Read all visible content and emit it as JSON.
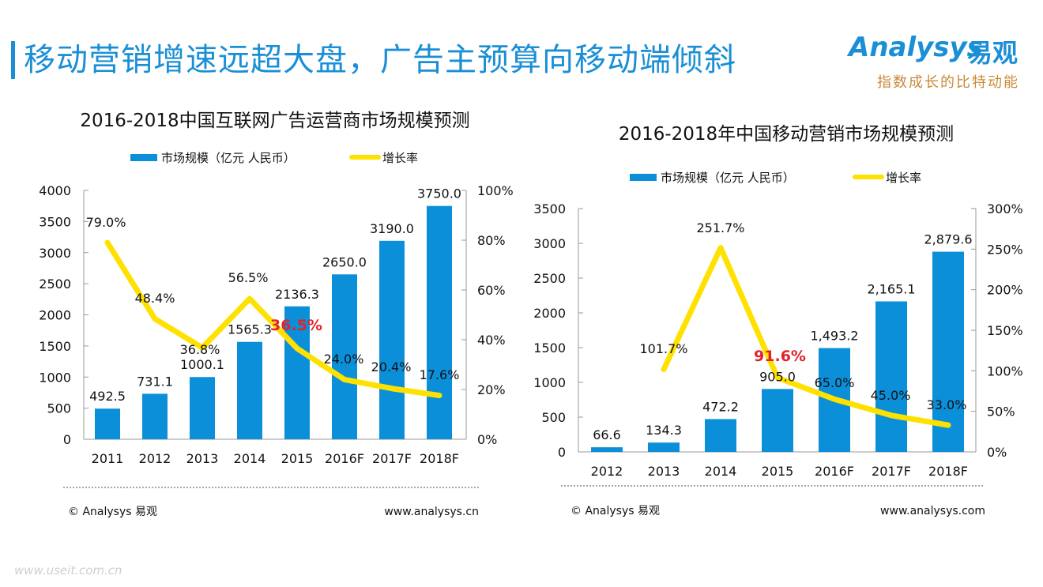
{
  "header": {
    "title": "移动营销增速远超大盘，广告主预算向移动端倾斜",
    "logo_en": "Analysys",
    "logo_cn": "易观",
    "slogan": "指数成长的比特动能"
  },
  "colors": {
    "bar": "#0b8fd9",
    "line": "#ffe100",
    "highlight": "#e0242a",
    "title_blue": "#1a8fd6"
  },
  "watermark": "www.useit.com.cn",
  "chart_data": [
    {
      "type": "bar",
      "title": "2016-2018中国互联网广告运营商市场规模预测",
      "legend": [
        "市场规模（亿元 人民币）",
        "增长率"
      ],
      "legend_position": "top",
      "categories": [
        "2011",
        "2012",
        "2013",
        "2014",
        "2015",
        "2016F",
        "2017F",
        "2018F"
      ],
      "series": [
        {
          "name": "市场规模（亿元 人民币）",
          "type": "bar",
          "axis": "left",
          "values": [
            492.5,
            731.1,
            1000.1,
            1565.3,
            2136.3,
            2650.0,
            3190.0,
            3750.0
          ],
          "labels": [
            "492.5",
            "731.1",
            "1000.1",
            "1565.3",
            "2136.3",
            "2650.0",
            "3190.0",
            "3750.0"
          ]
        },
        {
          "name": "增长率",
          "type": "line",
          "axis": "right",
          "values": [
            79.0,
            48.4,
            36.8,
            56.5,
            36.5,
            24.0,
            20.4,
            17.6
          ],
          "labels": [
            "79.0%",
            "48.4%",
            "36.8%",
            "56.5%",
            "36.5%",
            "24.0%",
            "20.4%",
            "17.6%"
          ],
          "highlight_index": 4
        }
      ],
      "ylim": [
        0,
        4000
      ],
      "yticks": [
        "0",
        "500",
        "1000",
        "1500",
        "2000",
        "2500",
        "3000",
        "3500",
        "4000"
      ],
      "y2lim": [
        0,
        100
      ],
      "y2ticks": [
        "0%",
        "20%",
        "40%",
        "60%",
        "80%",
        "100%"
      ],
      "grid": false,
      "footer_left": "© Analysys 易观",
      "footer_right": "www.analysys.cn"
    },
    {
      "type": "bar",
      "title": "2016-2018年中国移动营销市场规模预测",
      "legend": [
        "市场规模（亿元 人民币）",
        "增长率"
      ],
      "legend_position": "top",
      "categories": [
        "2012",
        "2013",
        "2014",
        "2015",
        "2016F",
        "2017F",
        "2018F"
      ],
      "series": [
        {
          "name": "市场规模（亿元 人民币）",
          "type": "bar",
          "axis": "left",
          "values": [
            66.6,
            134.3,
            472.2,
            905.0,
            1493.2,
            2165.1,
            2879.6
          ],
          "labels": [
            "66.6",
            "134.3",
            "472.2",
            "905.0",
            "1,493.2",
            "2,165.1",
            "2,879.6"
          ]
        },
        {
          "name": "增长率",
          "type": "line",
          "axis": "right",
          "values": [
            null,
            101.7,
            251.7,
            91.6,
            65.0,
            45.0,
            33.0
          ],
          "labels": [
            "",
            "101.7%",
            "251.7%",
            "91.6%",
            "65.0%",
            "45.0%",
            "33.0%"
          ],
          "highlight_index": 3
        }
      ],
      "ylim": [
        0,
        3500
      ],
      "yticks": [
        "0",
        "500",
        "1000",
        "1500",
        "2000",
        "2500",
        "3000",
        "3500"
      ],
      "y2lim": [
        0,
        300
      ],
      "y2ticks": [
        "0%",
        "50%",
        "100%",
        "150%",
        "200%",
        "250%",
        "300%"
      ],
      "grid": false,
      "footer_left": "© Analysys 易观",
      "footer_right": "www.analysys.com"
    }
  ]
}
